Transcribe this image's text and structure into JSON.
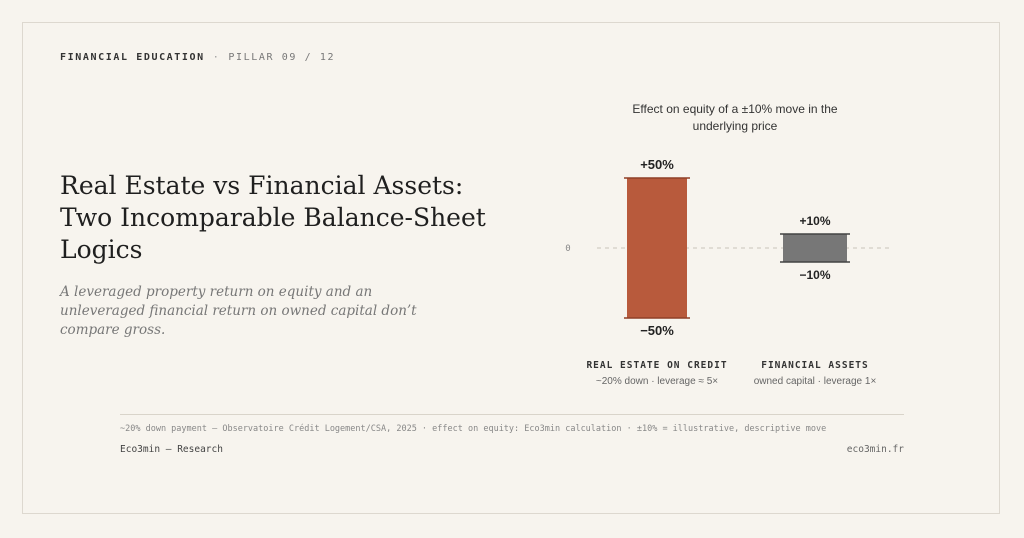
{
  "header": {
    "kicker_primary": "FINANCIAL EDUCATION",
    "kicker_separator": "·",
    "kicker_secondary": "PILLAR 09 / 12"
  },
  "main": {
    "title": "Real Estate vs Financial Assets: Two Incomparable Balance-Sheet Logics",
    "subtitle": "A leveraged property return on equity and an unleveraged financial return on owned capital don’t compare gross."
  },
  "chart_data": {
    "type": "bar",
    "title": "Effect on equity of a ±10% move in the underlying price",
    "baseline_label": "0",
    "ylim": [
      -50,
      50
    ],
    "categories": [
      {
        "name": "REAL ESTATE ON CREDIT",
        "detail": "~20% down · leverage ≈ 5×",
        "range": [
          -50,
          50
        ],
        "label_up": "+50%",
        "label_down": "−50%",
        "color": "#b85a3c"
      },
      {
        "name": "FINANCIAL ASSETS",
        "detail": "owned capital · leverage 1×",
        "range": [
          -10,
          10
        ],
        "label_up": "+10%",
        "label_down": "−10%",
        "color": "#777777"
      }
    ]
  },
  "footer": {
    "source": "~20% down payment — Observatoire Crédit Logement/CSA, 2025 · effect on equity: Eco3min calculation · ±10% = illustrative, descriptive move",
    "brand": "Eco3min — Research",
    "url": "eco3min.fr"
  }
}
